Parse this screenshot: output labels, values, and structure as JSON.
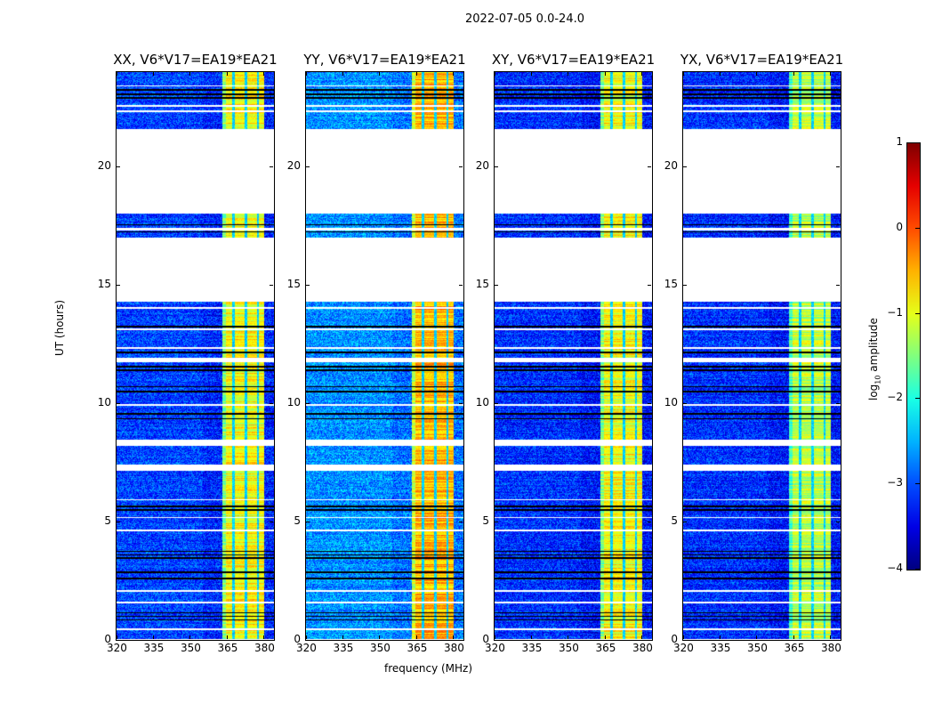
{
  "suptitle": "2022-07-05 0.0-24.0",
  "xlabel": "frequency (MHz)",
  "ylabel": "UT (hours)",
  "colorbar": {
    "label_main": "log",
    "label_sub": "10",
    "label_rest": " amplitude",
    "ticks": [
      "1",
      "0",
      "−1",
      "−2",
      "−3",
      "−4"
    ],
    "values": [
      1,
      0,
      -1,
      -2,
      -3,
      -4
    ],
    "range": [
      -4,
      1
    ],
    "colormap": "jet"
  },
  "chart_data": {
    "type": "heatmap",
    "xlim": [
      320,
      384
    ],
    "ylim": [
      0,
      24
    ],
    "xticks": [
      320,
      335,
      350,
      365,
      380
    ],
    "xtick_labels": [
      "320",
      "335",
      "350",
      "365",
      "380"
    ],
    "yticks": [
      0,
      5,
      10,
      15,
      20
    ],
    "ytick_labels": [
      "0",
      "5",
      "10",
      "15",
      "20"
    ],
    "data_time_ranges_hours": [
      [
        0.05,
        14.3
      ],
      [
        17.0,
        18.0
      ],
      [
        21.6,
        24.0
      ]
    ],
    "flagged_gaps_hours": [
      [
        0.4,
        0.48
      ],
      [
        1.55,
        1.62
      ],
      [
        2.05,
        2.1
      ],
      [
        4.6,
        4.67
      ],
      [
        5.15,
        5.2
      ],
      [
        5.9,
        5.95
      ],
      [
        7.15,
        7.4
      ],
      [
        8.2,
        8.45
      ],
      [
        9.9,
        9.97
      ],
      [
        11.75,
        11.92
      ],
      [
        12.3,
        12.36
      ],
      [
        13.1,
        13.15
      ],
      [
        14.0,
        14.06
      ],
      [
        17.3,
        17.4
      ],
      [
        22.3,
        22.4
      ],
      [
        22.55,
        22.62
      ],
      [
        23.4,
        23.45
      ]
    ],
    "dark_lines_hours": [
      0.85,
      1.0,
      1.15,
      2.6,
      2.85,
      3.45,
      3.6,
      3.75,
      5.5,
      5.65,
      9.35,
      9.55,
      10.5,
      10.7,
      11.4,
      11.55,
      12.15,
      13.25,
      17.25,
      17.55,
      22.9,
      23.25,
      23.05
    ],
    "rfi_band_mhz": [
      363,
      380
    ],
    "band_notches_mhz": [
      367.5,
      372.5,
      377.5
    ],
    "panels": [
      {
        "title": "XX, V6*V17=EA19*EA21",
        "background_log_amp": -3.2,
        "band_log_amp": -0.9
      },
      {
        "title": "YY, V6*V17=EA19*EA21",
        "background_log_amp": -2.8,
        "band_log_amp": -0.5
      },
      {
        "title": "XY, V6*V17=EA19*EA21",
        "background_log_amp": -3.3,
        "band_log_amp": -0.9
      },
      {
        "title": "YX, V6*V17=EA19*EA21",
        "background_log_amp": -3.3,
        "band_log_amp": -1.2
      }
    ]
  }
}
